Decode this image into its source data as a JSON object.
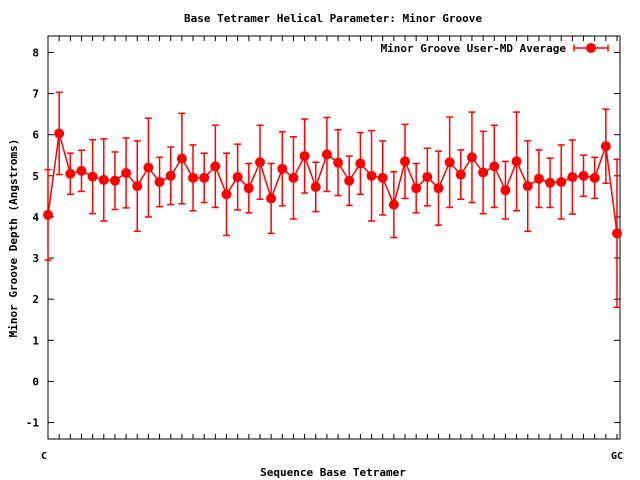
{
  "chart_data": {
    "type": "line",
    "title": "Base Tetramer Helical Parameter: Minor Groove",
    "xlabel": "Sequence Base Tetramer",
    "ylabel": "Minor Groove Depth (Angstroms)",
    "ylim": [
      -1.4,
      8.4
    ],
    "yticks": [
      -1,
      0,
      1,
      2,
      3,
      4,
      5,
      6,
      7,
      8
    ],
    "grid": false,
    "legend_position": "top-right",
    "color": "#ff0000",
    "first_category": "C",
    "last_category": "GC",
    "series": [
      {
        "name": "Minor Groove User-MD Average",
        "values": [
          4.05,
          6.03,
          5.05,
          5.12,
          4.98,
          4.9,
          4.88,
          5.07,
          4.75,
          5.2,
          4.85,
          5.0,
          5.42,
          4.95,
          4.95,
          5.23,
          4.55,
          4.97,
          4.7,
          5.33,
          4.45,
          5.17,
          4.95,
          5.48,
          4.73,
          5.52,
          5.32,
          4.88,
          5.3,
          5.0,
          4.95,
          4.3,
          5.35,
          4.7,
          4.97,
          4.7,
          5.33,
          5.03,
          5.45,
          5.08,
          5.23,
          4.65,
          5.35,
          4.75,
          4.93,
          4.83,
          4.85,
          4.97,
          5.0,
          4.95,
          5.72,
          3.6
        ],
        "errors": [
          1.1,
          1.0,
          0.5,
          0.5,
          0.9,
          1.0,
          0.7,
          0.85,
          1.1,
          1.2,
          0.6,
          0.7,
          1.1,
          0.8,
          0.6,
          1.0,
          1.0,
          0.8,
          0.6,
          0.9,
          0.85,
          0.9,
          1.0,
          0.9,
          0.6,
          0.9,
          0.8,
          0.6,
          0.75,
          1.1,
          0.9,
          0.8,
          0.9,
          0.6,
          0.7,
          0.9,
          1.1,
          0.6,
          1.1,
          1.0,
          1.0,
          0.7,
          1.2,
          1.1,
          0.7,
          0.6,
          0.9,
          0.9,
          0.5,
          0.5,
          0.9,
          1.8
        ]
      }
    ]
  }
}
